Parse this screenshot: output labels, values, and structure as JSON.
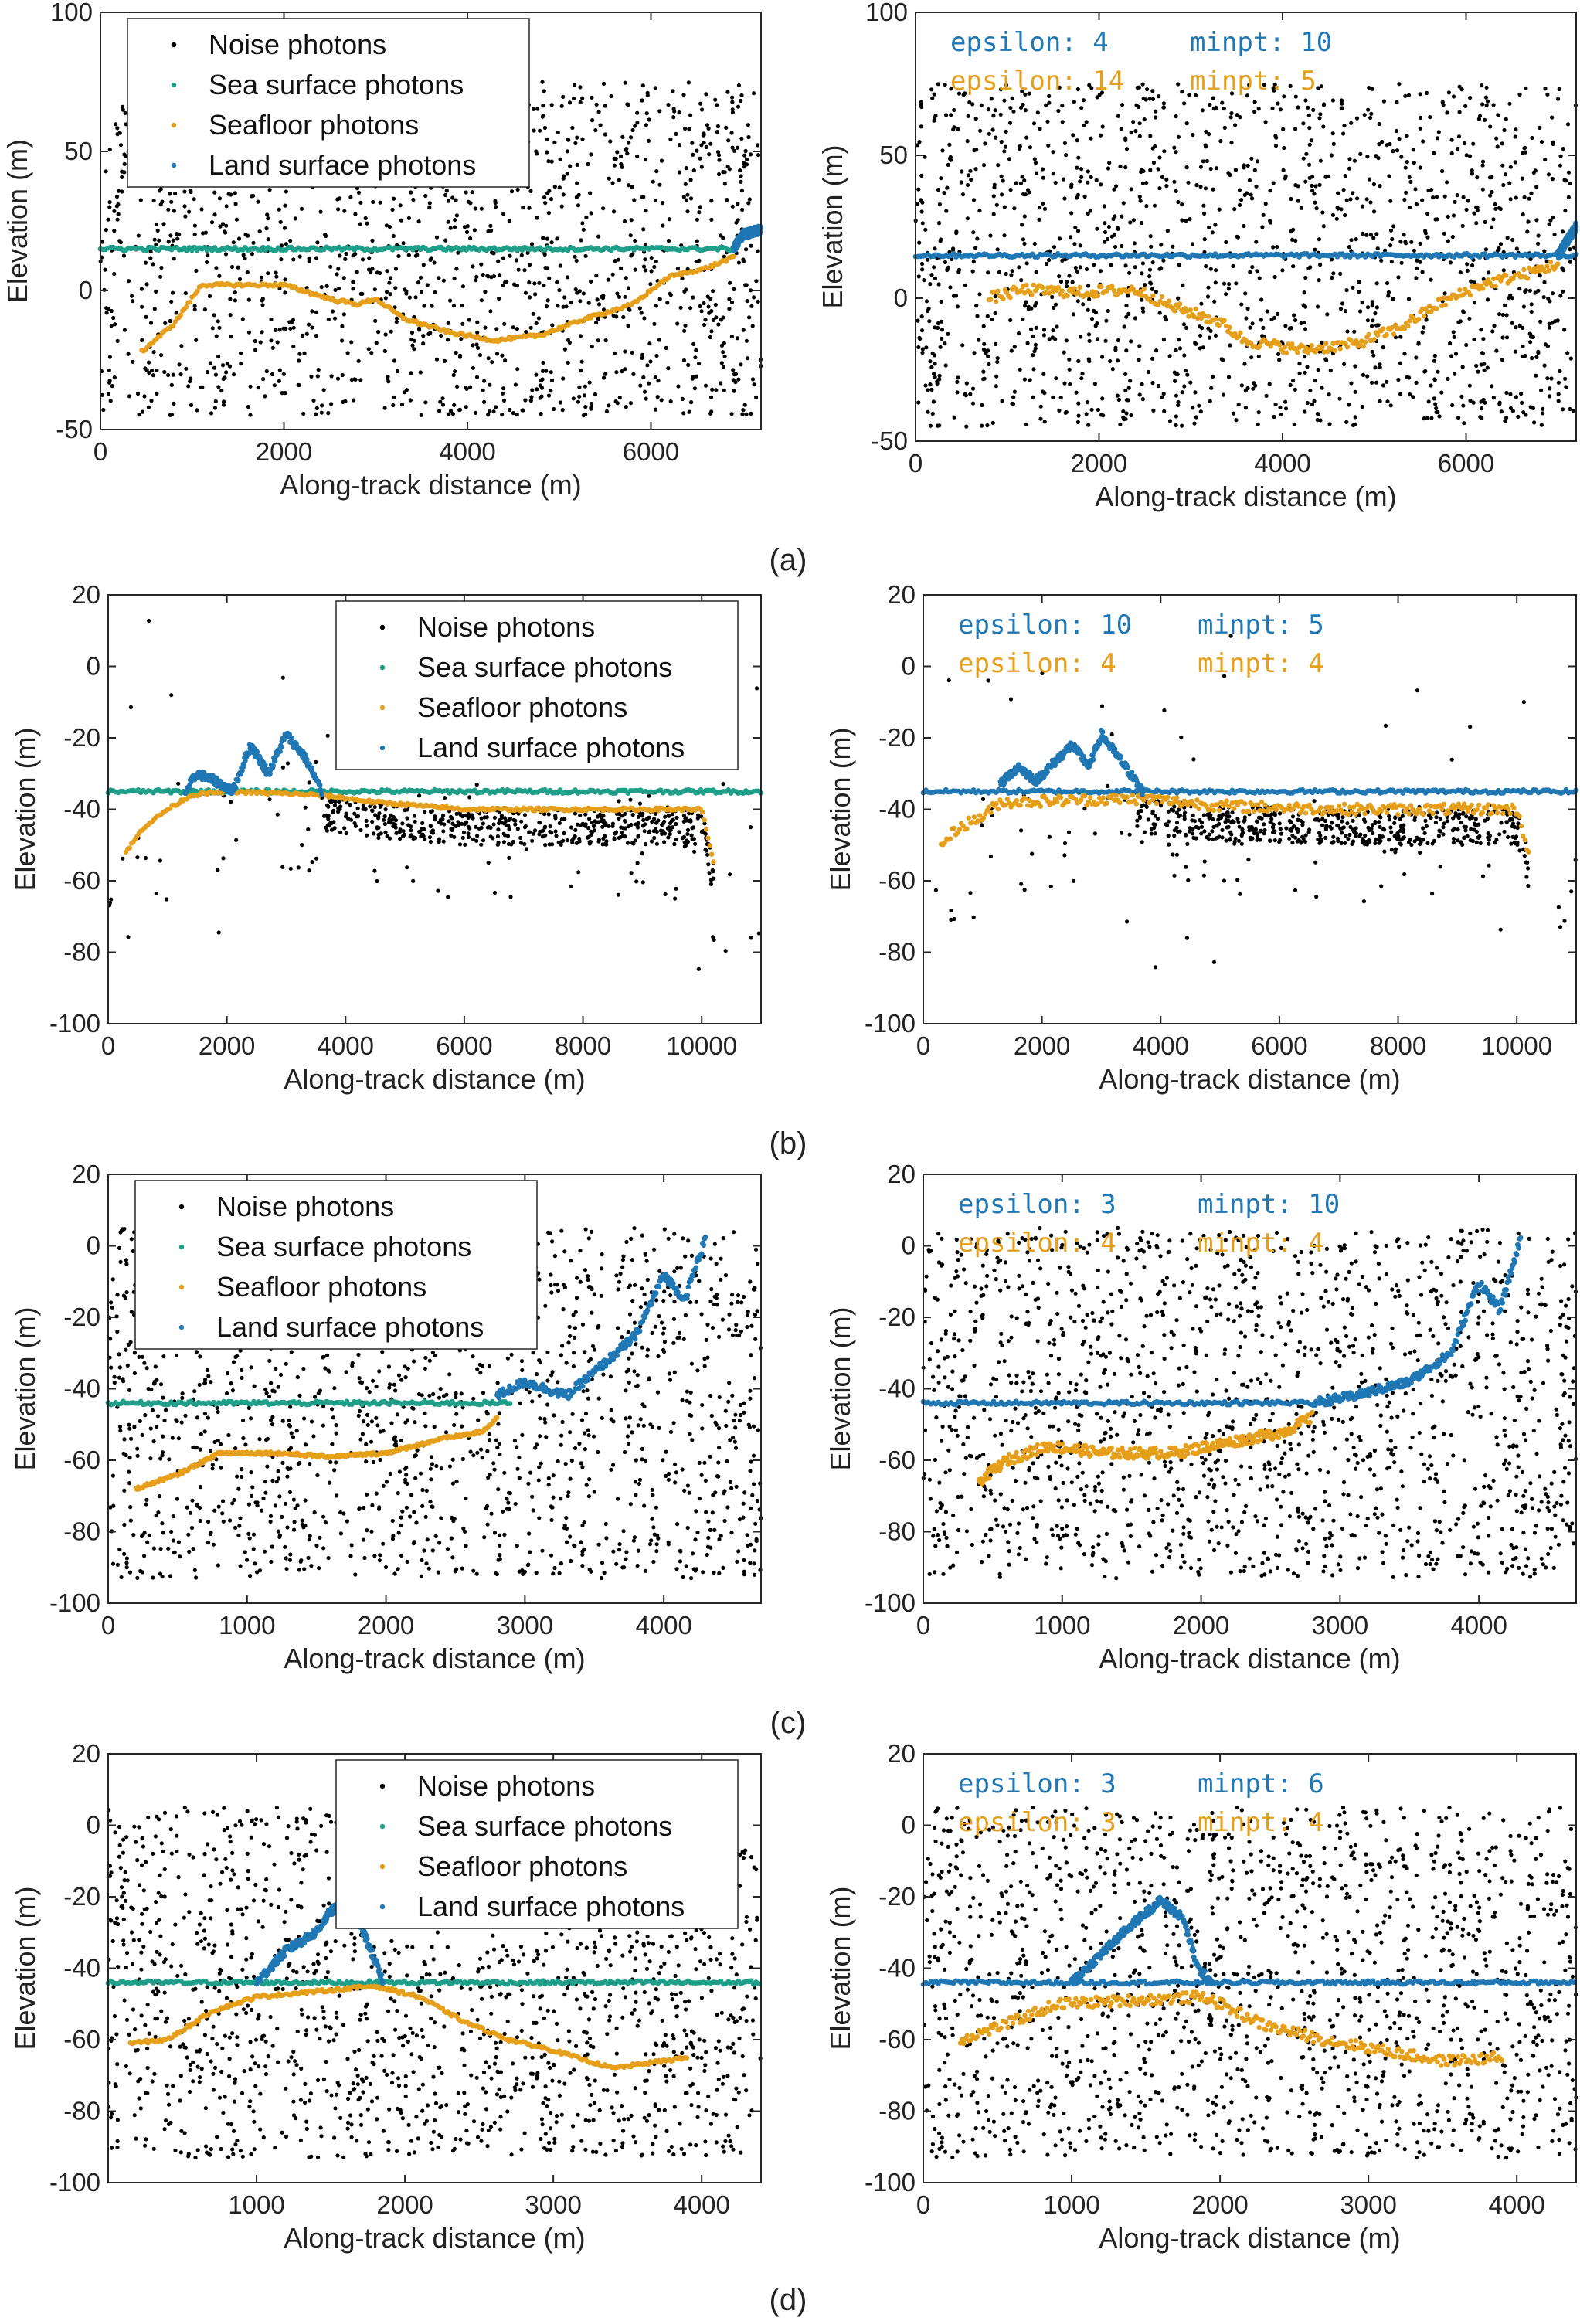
{
  "colors": {
    "noise": "#000000",
    "sea": "#1f9e89",
    "seafloor": "#e69f1a",
    "land": "#1f77b4",
    "param_blue": "#1f77b4",
    "param_orange": "#e69f1a"
  },
  "legend": [
    "Noise photons",
    "Sea surface photons",
    "Seafloor photons",
    "Land surface photons"
  ],
  "panel_labels": [
    "(a)",
    "(b)",
    "(c)",
    "(d)"
  ],
  "chart_data": [
    {
      "type": "scatter",
      "panel": "(a)",
      "side": "left",
      "xlabel": "Along-track distance (m)",
      "ylabel": "Elevation (m)",
      "xlim": [
        0,
        7200
      ],
      "ylim": [
        -50,
        100
      ],
      "xticks": [
        0,
        2000,
        4000,
        6000
      ],
      "yticks": [
        -50,
        0,
        50,
        100
      ],
      "legend": [
        "Noise photons",
        "Sea surface photons",
        "Seafloor photons",
        "Land surface photons"
      ],
      "legend_position": "top-left",
      "noise_band": [
        -45,
        75
      ],
      "sea_surface": {
        "y": 15,
        "x": [
          0,
          6900
        ]
      },
      "seafloor": [
        [
          450,
          -22
        ],
        [
          800,
          -12
        ],
        [
          1100,
          2
        ],
        [
          1500,
          2
        ],
        [
          2000,
          2
        ],
        [
          2500,
          -3
        ],
        [
          2800,
          -5
        ],
        [
          3000,
          -3
        ],
        [
          3300,
          -10
        ],
        [
          3800,
          -15
        ],
        [
          4300,
          -18
        ],
        [
          4800,
          -16
        ],
        [
          5300,
          -10
        ],
        [
          5800,
          -5
        ],
        [
          6200,
          5
        ],
        [
          6600,
          8
        ],
        [
          6900,
          12
        ]
      ],
      "land": [
        [
          6900,
          15
        ],
        [
          7000,
          20
        ],
        [
          7200,
          22
        ]
      ]
    },
    {
      "type": "scatter",
      "panel": "(a)",
      "side": "right",
      "xlabel": "Along-track distance (m)",
      "ylabel": "Elevation (m)",
      "xlim": [
        0,
        7200
      ],
      "ylim": [
        -50,
        100
      ],
      "xticks": [
        0,
        2000,
        4000,
        6000
      ],
      "yticks": [
        -50,
        0,
        50,
        100
      ],
      "params": {
        "blue_epsilon": "epsilon: 4",
        "blue_minpt": "minpt: 10",
        "orange_epsilon": "epsilon: 14",
        "orange_minpt": "minpt: 5"
      },
      "noise_band": [
        -45,
        75
      ],
      "sea_surface": {
        "y": 15,
        "x": [
          0,
          7200
        ]
      },
      "seafloor": [
        [
          800,
          0
        ],
        [
          1200,
          3
        ],
        [
          1800,
          2
        ],
        [
          2400,
          3
        ],
        [
          2800,
          -3
        ],
        [
          3300,
          -8
        ],
        [
          3600,
          -15
        ],
        [
          4200,
          -18
        ],
        [
          4800,
          -16
        ],
        [
          5300,
          -10
        ],
        [
          5700,
          -2
        ],
        [
          6200,
          5
        ],
        [
          6600,
          8
        ],
        [
          7000,
          12
        ]
      ],
      "land": [
        [
          7000,
          15
        ],
        [
          7200,
          25
        ]
      ]
    },
    {
      "type": "scatter",
      "panel": "(b)",
      "side": "left",
      "xlabel": "Along-track distance (m)",
      "ylabel": "Elevation (m)",
      "xlim": [
        0,
        11000
      ],
      "ylim": [
        -100,
        20
      ],
      "xticks": [
        0,
        2000,
        4000,
        6000,
        8000,
        10000
      ],
      "yticks": [
        -100,
        -80,
        -60,
        -40,
        -20,
        0,
        20
      ],
      "legend": [
        "Noise photons",
        "Sea surface photons",
        "Seafloor photons",
        "Land surface photons"
      ],
      "legend_position": "top-right",
      "noise_band": [
        -85,
        15
      ],
      "noise_style": "sparse",
      "sea_surface": {
        "y": -35,
        "x": [
          0,
          11000
        ]
      },
      "seafloor": [
        [
          300,
          -52
        ],
        [
          600,
          -45
        ],
        [
          1000,
          -40
        ],
        [
          1400,
          -36
        ],
        [
          2000,
          -35
        ],
        [
          3600,
          -36
        ],
        [
          4500,
          -38
        ],
        [
          6000,
          -40
        ],
        [
          8000,
          -40
        ],
        [
          9500,
          -40
        ],
        [
          10000,
          -40
        ],
        [
          10200,
          -55
        ]
      ],
      "land": [
        [
          1300,
          -35
        ],
        [
          1500,
          -30
        ],
        [
          1800,
          -32
        ],
        [
          2100,
          -35
        ],
        [
          2400,
          -22
        ],
        [
          2700,
          -30
        ],
        [
          3000,
          -19
        ],
        [
          3300,
          -25
        ],
        [
          3600,
          -35
        ]
      ]
    },
    {
      "type": "scatter",
      "panel": "(b)",
      "side": "right",
      "xlabel": "Along-track distance (m)",
      "ylabel": "Elevation (m)",
      "xlim": [
        0,
        11000
      ],
      "ylim": [
        -100,
        20
      ],
      "xticks": [
        0,
        2000,
        4000,
        6000,
        8000,
        10000
      ],
      "yticks": [
        -100,
        -80,
        -60,
        -40,
        -20,
        0,
        20
      ],
      "params": {
        "blue_epsilon": "epsilon: 10",
        "blue_minpt": "minpt: 5",
        "orange_epsilon": "epsilon: 4",
        "orange_minpt": "minpt: 4"
      },
      "noise_band": [
        -85,
        15
      ],
      "noise_style": "sparse",
      "sea_surface": {
        "y": -35,
        "x": [
          0,
          11000
        ]
      },
      "seafloor": [
        [
          300,
          -50
        ],
        [
          600,
          -45
        ],
        [
          1000,
          -42
        ],
        [
          1300,
          -38
        ],
        [
          3700,
          -37
        ],
        [
          5000,
          -39
        ],
        [
          7000,
          -40
        ],
        [
          9000,
          -40
        ],
        [
          10000,
          -40
        ],
        [
          10200,
          -52
        ]
      ],
      "land": [
        [
          1300,
          -33
        ],
        [
          1600,
          -28
        ],
        [
          1900,
          -32
        ],
        [
          2200,
          -27
        ],
        [
          2500,
          -22
        ],
        [
          2800,
          -28
        ],
        [
          3000,
          -19
        ],
        [
          3400,
          -28
        ],
        [
          3700,
          -35
        ]
      ]
    },
    {
      "type": "scatter",
      "panel": "(c)",
      "side": "left",
      "xlabel": "Along-track distance (m)",
      "ylabel": "Elevation (m)",
      "xlim": [
        0,
        4700
      ],
      "ylim": [
        -100,
        20
      ],
      "xticks": [
        0,
        1000,
        2000,
        3000,
        4000
      ],
      "yticks": [
        -100,
        -80,
        -60,
        -40,
        -20,
        0,
        20
      ],
      "legend": [
        "Noise photons",
        "Sea surface photons",
        "Seafloor photons",
        "Land surface photons"
      ],
      "legend_position": "top-left",
      "noise_band": [
        -93,
        5
      ],
      "sea_surface": {
        "y": -44,
        "x": [
          0,
          2900
        ]
      },
      "seafloor": [
        [
          200,
          -68
        ],
        [
          500,
          -64
        ],
        [
          800,
          -58
        ],
        [
          1200,
          -58
        ],
        [
          1600,
          -59
        ],
        [
          2000,
          -58
        ],
        [
          2400,
          -54
        ],
        [
          2700,
          -52
        ],
        [
          2800,
          -48
        ]
      ],
      "land": [
        [
          2800,
          -42
        ],
        [
          3000,
          -38
        ],
        [
          3300,
          -42
        ],
        [
          3600,
          -32
        ],
        [
          3800,
          -25
        ],
        [
          4000,
          -8
        ],
        [
          4150,
          -15
        ],
        [
          4300,
          2
        ]
      ]
    },
    {
      "type": "scatter",
      "panel": "(c)",
      "side": "right",
      "xlabel": "Along-track distance (m)",
      "ylabel": "Elevation (m)",
      "xlim": [
        0,
        4700
      ],
      "ylim": [
        -100,
        20
      ],
      "xticks": [
        0,
        1000,
        2000,
        3000,
        4000
      ],
      "yticks": [
        -100,
        -80,
        -60,
        -40,
        -20,
        0,
        20
      ],
      "params": {
        "blue_epsilon": "epsilon: 3",
        "blue_minpt": "minpt: 10",
        "orange_epsilon": "epsilon: 4",
        "orange_minpt": "minpt: 4"
      },
      "noise_band": [
        -93,
        5
      ],
      "sea_surface": {
        "y": -44,
        "x": [
          0,
          2900
        ]
      },
      "seafloor": [
        [
          400,
          -66
        ],
        [
          600,
          -60
        ],
        [
          900,
          -56
        ],
        [
          1300,
          -58
        ],
        [
          1800,
          -58
        ],
        [
          2200,
          -55
        ],
        [
          2600,
          -52
        ],
        [
          2800,
          -48
        ]
      ],
      "land": [
        [
          2800,
          -44
        ],
        [
          3100,
          -42
        ],
        [
          3500,
          -38
        ],
        [
          3800,
          -30
        ],
        [
          4000,
          -10
        ],
        [
          4150,
          -18
        ],
        [
          4300,
          2
        ]
      ]
    },
    {
      "type": "scatter",
      "panel": "(d)",
      "side": "left",
      "xlabel": "Along-track distance (m)",
      "ylabel": "Elevation (m)",
      "xlim": [
        0,
        4400
      ],
      "ylim": [
        -100,
        20
      ],
      "xticks": [
        1000,
        2000,
        3000,
        4000
      ],
      "yticks": [
        -100,
        -80,
        -60,
        -40,
        -20,
        0,
        20
      ],
      "legend": [
        "Noise photons",
        "Sea surface photons",
        "Seafloor photons",
        "Land surface photons"
      ],
      "legend_position": "top-right",
      "noise_band": [
        -93,
        5
      ],
      "sea_surface": {
        "y": -44,
        "x": [
          0,
          4400
        ]
      },
      "seafloor": [
        [
          150,
          -61
        ],
        [
          400,
          -60
        ],
        [
          700,
          -52
        ],
        [
          1000,
          -48
        ],
        [
          1800,
          -45
        ],
        [
          2100,
          -48
        ],
        [
          2400,
          -55
        ],
        [
          2700,
          -60
        ],
        [
          3000,
          -63
        ],
        [
          3400,
          -68
        ],
        [
          3900,
          -65
        ]
      ],
      "land": [
        [
          1000,
          -44
        ],
        [
          1200,
          -35
        ],
        [
          1400,
          -30
        ],
        [
          1500,
          -24
        ],
        [
          1600,
          -22
        ],
        [
          1700,
          -28
        ],
        [
          1800,
          -38
        ],
        [
          1850,
          -44
        ]
      ]
    },
    {
      "type": "scatter",
      "panel": "(d)",
      "side": "right",
      "xlabel": "Along-track distance (m)",
      "ylabel": "Elevation (m)",
      "xlim": [
        0,
        4400
      ],
      "ylim": [
        -100,
        20
      ],
      "xticks": [
        0,
        1000,
        2000,
        3000,
        4000
      ],
      "yticks": [
        -100,
        -80,
        -60,
        -40,
        -20,
        0,
        20
      ],
      "params": {
        "blue_epsilon": "epsilon: 3",
        "blue_minpt": "minpt: 6",
        "orange_epsilon": "epsilon: 3",
        "orange_minpt": "minpt: 4"
      },
      "noise_band": [
        -93,
        5
      ],
      "sea_surface": {
        "y": -44,
        "x": [
          0,
          4400
        ]
      },
      "seafloor": [
        [
          250,
          -60
        ],
        [
          600,
          -55
        ],
        [
          900,
          -50
        ],
        [
          1900,
          -48
        ],
        [
          2300,
          -56
        ],
        [
          2700,
          -60
        ],
        [
          3100,
          -63
        ],
        [
          3500,
          -66
        ],
        [
          3900,
          -65
        ]
      ],
      "land": [
        [
          1000,
          -44
        ],
        [
          1200,
          -36
        ],
        [
          1400,
          -28
        ],
        [
          1600,
          -21
        ],
        [
          1750,
          -26
        ],
        [
          1850,
          -40
        ],
        [
          1950,
          -44
        ]
      ]
    }
  ]
}
